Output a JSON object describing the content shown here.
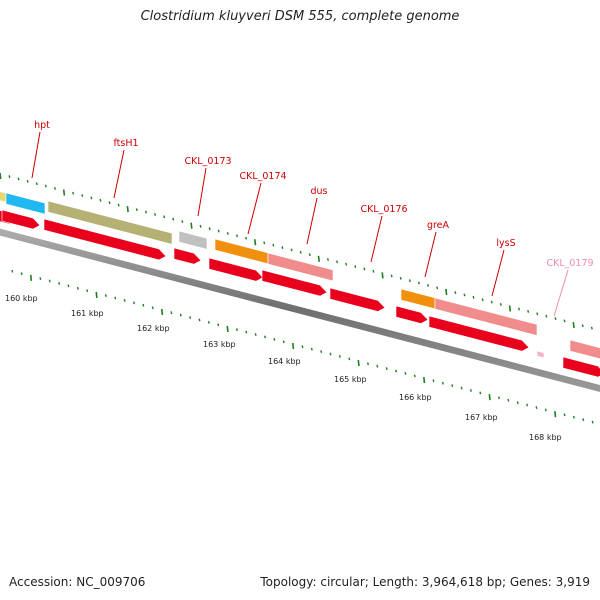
{
  "title": "Clostridium kluyveri DSM 555, complete genome",
  "footer": {
    "accession": "Accession: NC_009706",
    "topology": "Topology: circular; Length: 3,964,618 bp; Genes: 3,919"
  },
  "colors": {
    "backbone": "#808080",
    "cds": "#e8001c",
    "major_tick": "#1f7f1f",
    "minor_tick": "#1f7f1f",
    "label": "#cc0000",
    "label_faded": "#f08caa"
  },
  "gene_labels": [
    {
      "id": "hpt",
      "text": "hpt",
      "color": "#cc0000"
    },
    {
      "id": "ftsH1",
      "text": "ftsH1",
      "color": "#cc0000"
    },
    {
      "id": "CKL_0173",
      "text": "CKL_0173",
      "color": "#cc0000"
    },
    {
      "id": "CKL_0174",
      "text": "CKL_0174",
      "color": "#cc0000"
    },
    {
      "id": "dus",
      "text": "dus",
      "color": "#cc0000"
    },
    {
      "id": "CKL_0176",
      "text": "CKL_0176",
      "color": "#cc0000"
    },
    {
      "id": "greA",
      "text": "greA",
      "color": "#cc0000"
    },
    {
      "id": "lysS",
      "text": "lysS",
      "color": "#cc0000"
    },
    {
      "id": "CKL_0179",
      "text": "CKL_0179",
      "color": "#f08caa"
    }
  ],
  "genes": [
    {
      "name": "gene-edge-left",
      "color": "#e8d873"
    },
    {
      "name": "hpt",
      "color": "#20b8f0"
    },
    {
      "name": "ftsH1",
      "color": "#b5b073"
    },
    {
      "name": "CKL_0173",
      "color": "#c0c0c0"
    },
    {
      "name": "CKL_0174",
      "color": "#f0900c"
    },
    {
      "name": "dus",
      "color": "#f08c8c"
    },
    {
      "name": "greA",
      "color": "#f0900c"
    },
    {
      "name": "lysS",
      "color": "#f08c8c"
    },
    {
      "name": "CKL_0179",
      "color": "#f8b0d0"
    },
    {
      "name": "gene-edge-right",
      "color": "#f08c8c"
    }
  ],
  "ticks": [
    {
      "label": "160 kbp"
    },
    {
      "label": "161 kbp"
    },
    {
      "label": "162 kbp"
    },
    {
      "label": "163 kbp"
    },
    {
      "label": "164 kbp"
    },
    {
      "label": "165 kbp"
    },
    {
      "label": "166 kbp"
    },
    {
      "label": "167 kbp"
    },
    {
      "label": "168 kbp"
    }
  ]
}
